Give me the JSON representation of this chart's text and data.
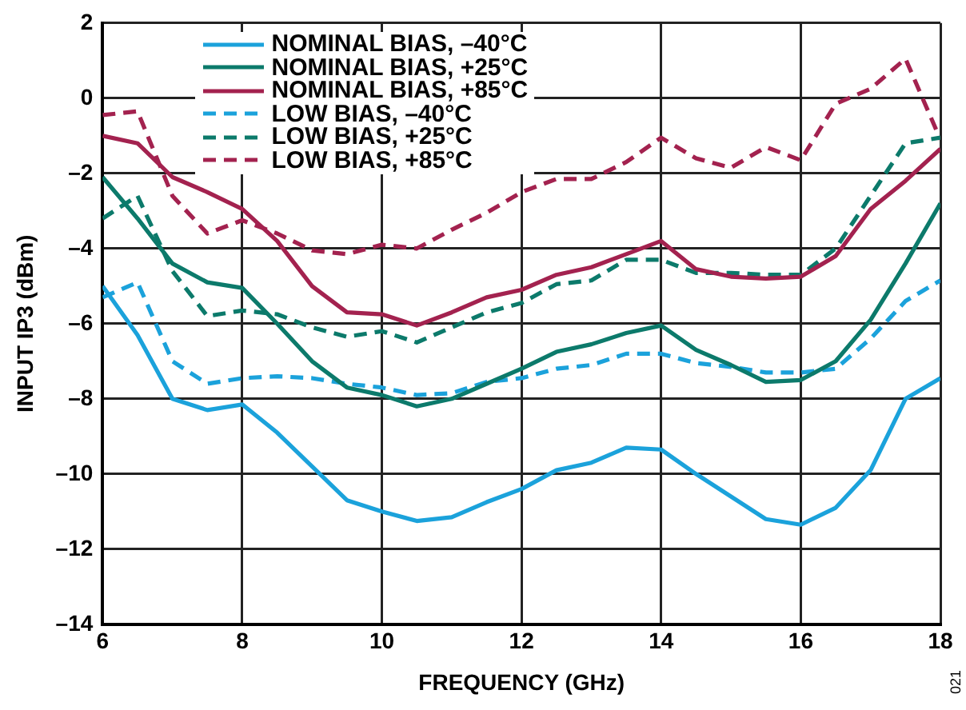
{
  "chart_data": {
    "type": "line",
    "xlabel": "FREQUENCY (GHz)",
    "ylabel": "INPUT IP3 (dBm)",
    "x": [
      6,
      6.5,
      7,
      7.5,
      8,
      8.5,
      9,
      9.5,
      10,
      10.5,
      11,
      11.5,
      12,
      12.5,
      13,
      13.5,
      14,
      14.5,
      15,
      15.5,
      16,
      16.5,
      17,
      17.5,
      18
    ],
    "series": [
      {
        "name": "NOMINAL BIAS, –40°C",
        "color": "#1ba2db",
        "line_style": "solid",
        "values": [
          -5.0,
          -6.3,
          -8.0,
          -8.3,
          -8.15,
          -8.9,
          -9.8,
          -10.7,
          -11.0,
          -11.25,
          -11.15,
          -10.75,
          -10.4,
          -9.9,
          -9.7,
          -9.3,
          -9.35,
          -10.0,
          -10.6,
          -11.2,
          -11.35,
          -10.9,
          -9.9,
          -8.0,
          -7.45
        ]
      },
      {
        "name": "NOMINAL BIAS, +25°C",
        "color": "#0c7a6b",
        "line_style": "solid",
        "values": [
          -2.1,
          -3.2,
          -4.4,
          -4.9,
          -5.05,
          -6.0,
          -7.0,
          -7.7,
          -7.9,
          -8.2,
          -8.0,
          -7.6,
          -7.2,
          -6.75,
          -6.55,
          -6.25,
          -6.05,
          -6.7,
          -7.1,
          -7.55,
          -7.5,
          -7.0,
          -5.9,
          -4.4,
          -2.8
        ]
      },
      {
        "name": "NOMINAL BIAS, +85°C",
        "color": "#a3224f",
        "line_style": "solid",
        "values": [
          -1.0,
          -1.2,
          -2.1,
          -2.5,
          -2.95,
          -3.8,
          -5.0,
          -5.7,
          -5.75,
          -6.05,
          -5.7,
          -5.3,
          -5.1,
          -4.7,
          -4.5,
          -4.15,
          -3.8,
          -4.55,
          -4.75,
          -4.8,
          -4.75,
          -4.2,
          -2.95,
          -2.2,
          -1.35
        ]
      },
      {
        "name": "LOW BIAS, –40°C",
        "color": "#1ba2db",
        "line_style": "dashed",
        "values": [
          -5.3,
          -4.9,
          -7.0,
          -7.6,
          -7.45,
          -7.4,
          -7.45,
          -7.6,
          -7.7,
          -7.9,
          -7.85,
          -7.55,
          -7.45,
          -7.2,
          -7.1,
          -6.8,
          -6.8,
          -7.05,
          -7.15,
          -7.3,
          -7.3,
          -7.2,
          -6.4,
          -5.4,
          -4.85
        ]
      },
      {
        "name": "LOW BIAS, +25°C",
        "color": "#0c7a6b",
        "line_style": "dashed",
        "values": [
          -3.2,
          -2.6,
          -4.6,
          -5.8,
          -5.65,
          -5.75,
          -6.1,
          -6.35,
          -6.2,
          -6.5,
          -6.1,
          -5.7,
          -5.45,
          -4.95,
          -4.85,
          -4.3,
          -4.3,
          -4.65,
          -4.65,
          -4.7,
          -4.7,
          -4.0,
          -2.6,
          -1.2,
          -1.05
        ]
      },
      {
        "name": "LOW BIAS, +85°C",
        "color": "#a3224f",
        "line_style": "dashed",
        "values": [
          -0.45,
          -0.35,
          -2.6,
          -3.6,
          -3.25,
          -3.6,
          -4.05,
          -4.15,
          -3.9,
          -4.0,
          -3.5,
          -3.05,
          -2.5,
          -2.15,
          -2.15,
          -1.7,
          -1.05,
          -1.6,
          -1.85,
          -1.3,
          -1.65,
          -0.15,
          0.25,
          1.05,
          -1.1
        ]
      }
    ],
    "xlim": [
      6,
      18
    ],
    "xticks": [
      6,
      8,
      10,
      12,
      14,
      16,
      18
    ],
    "ylim": [
      -14,
      2
    ],
    "yticks": [
      {
        "value": -14,
        "label": "–14"
      },
      {
        "value": -12,
        "label": "–12"
      },
      {
        "value": -10,
        "label": "–10"
      },
      {
        "value": -8,
        "label": "–8"
      },
      {
        "value": -6,
        "label": "–6"
      },
      {
        "value": -4,
        "label": "–4"
      },
      {
        "value": -2,
        "label": "–2"
      },
      0,
      2
    ],
    "grid": true,
    "legend": "top",
    "marker": "none",
    "annotations": [
      "021"
    ]
  }
}
